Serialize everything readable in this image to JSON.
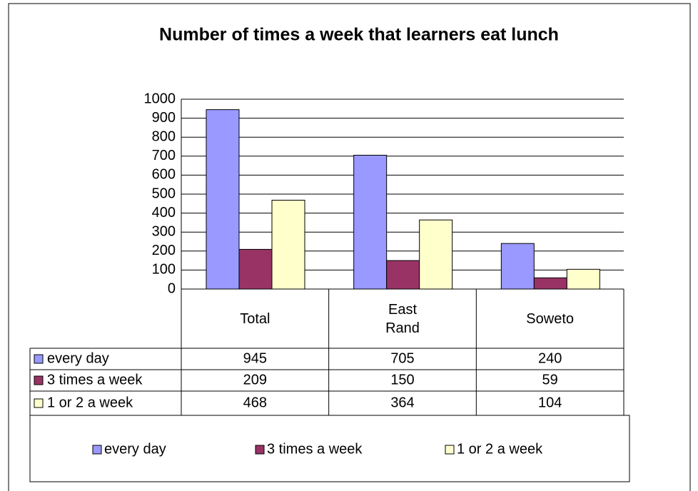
{
  "chart_data": {
    "type": "bar",
    "title": "Number of times a week that learners eat lunch",
    "categories": [
      "Total",
      "East Rand",
      "Soweto"
    ],
    "series": [
      {
        "name": "every day",
        "color": "#9999ff",
        "values": [
          945,
          705,
          240
        ]
      },
      {
        "name": "3 times a week",
        "color": "#993366",
        "values": [
          209,
          150,
          59
        ]
      },
      {
        "name": "1 or 2 a week",
        "color": "#ffffcc",
        "values": [
          468,
          364,
          104
        ]
      }
    ],
    "ylim": [
      0,
      1000
    ],
    "yticks": [
      0,
      100,
      200,
      300,
      400,
      500,
      600,
      700,
      800,
      900,
      1000
    ],
    "grid": true,
    "data_table": true,
    "legend": "bottom"
  }
}
